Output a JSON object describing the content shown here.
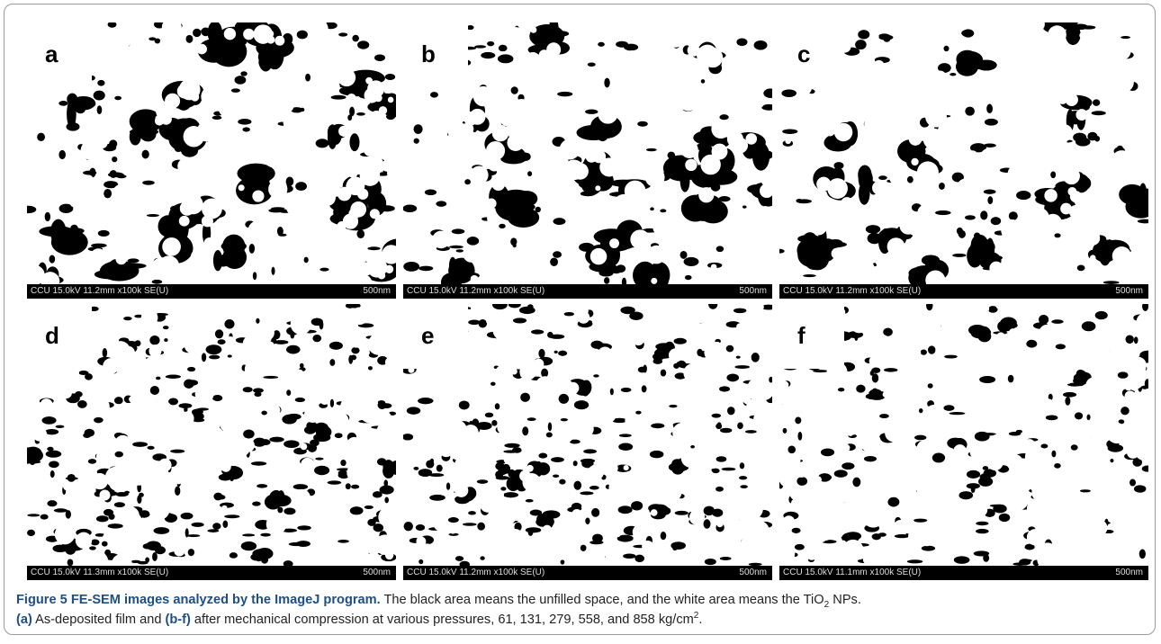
{
  "panels": [
    {
      "label": "a",
      "info": "CCU 15.0kV 11.2mm x100k SE(U)",
      "scale": "500nm"
    },
    {
      "label": "b",
      "info": "CCU 15.0kV 11.2mm x100k SE(U)",
      "scale": "500nm"
    },
    {
      "label": "c",
      "info": "CCU 15.0kV 11.2mm x100k SE(U)",
      "scale": "500nm"
    },
    {
      "label": "d",
      "info": "CCU 15.0kV 11.3mm x100k SE(U)",
      "scale": "500nm"
    },
    {
      "label": "e",
      "info": "CCU 15.0kV 11.2mm x100k SE(U)",
      "scale": "500nm"
    },
    {
      "label": "f",
      "info": "CCU 15.0kV 11.1mm x100k SE(U)",
      "scale": "500nm"
    }
  ],
  "caption": {
    "label": "Figure 5 FE-SEM images analyzed by the ImageJ program.",
    "text1": " The black area means the unfilled space, and the white area means the TiO",
    "sub": "2",
    "text2": " NPs.",
    "ref_a": "(a)",
    "text3": " As-deposited film and ",
    "ref_bf": "(b-f)",
    "text4": " after mechanical compression at various pressures, 61, 131, 279, 558, and 858 kg/cm",
    "sup": "2",
    "text5": "."
  }
}
